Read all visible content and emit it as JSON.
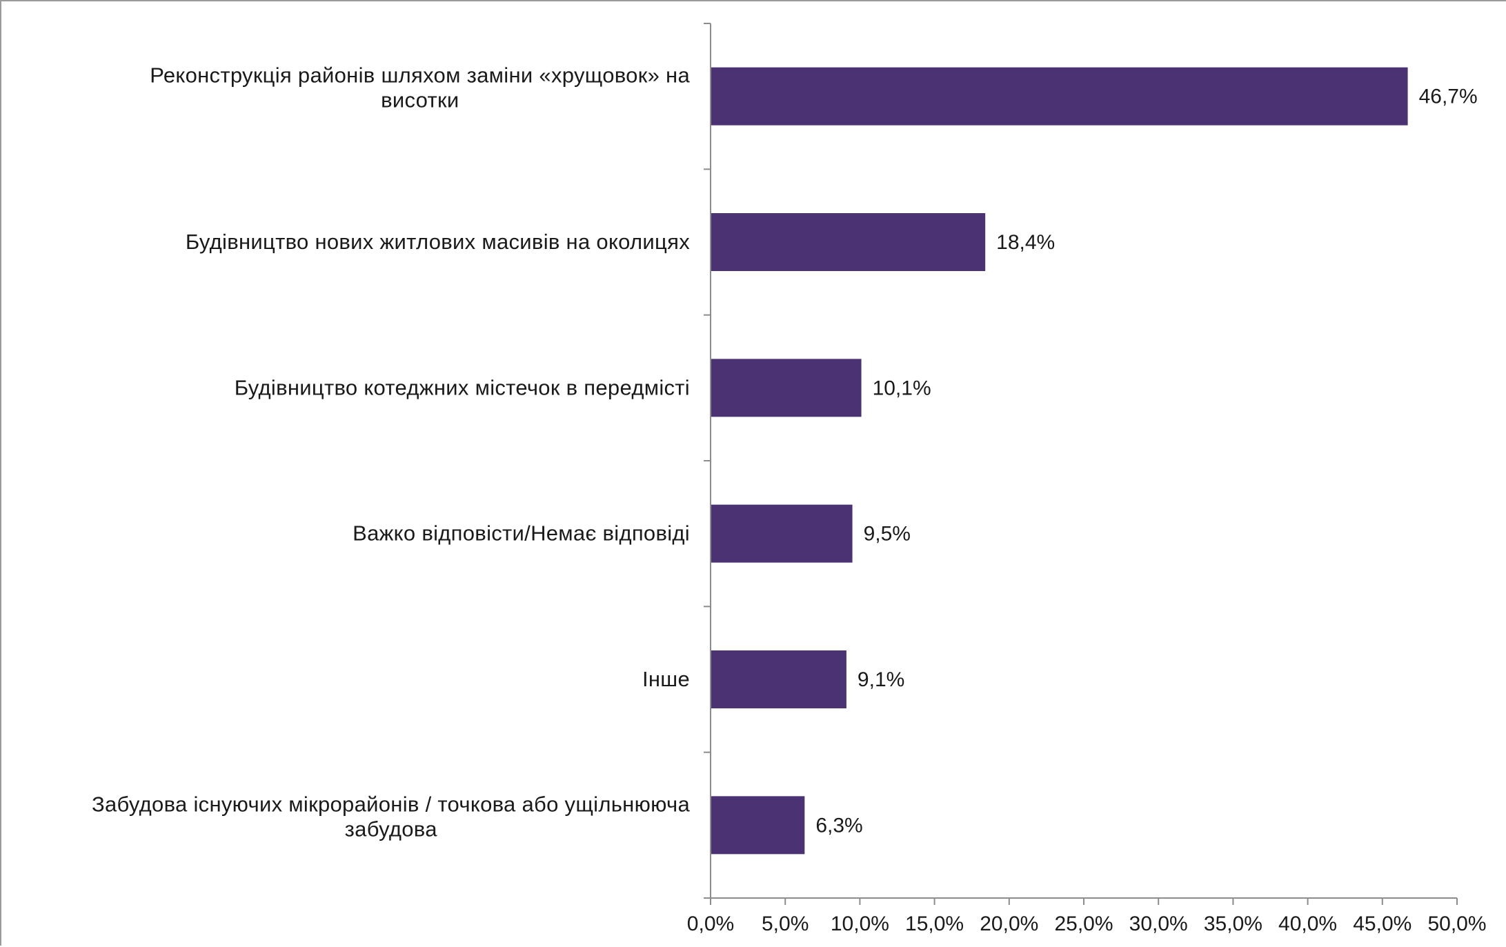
{
  "chart_data": {
    "type": "bar",
    "orientation": "horizontal",
    "title": "",
    "xlabel": "",
    "ylabel": "",
    "xlim": [
      0,
      50
    ],
    "x_tick_step": 5,
    "x_tick_labels": [
      "0,0%",
      "5,0%",
      "10,0%",
      "15,0%",
      "20,0%",
      "25,0%",
      "30,0%",
      "35,0%",
      "40,0%",
      "45,0%",
      "50,0%"
    ],
    "categories": [
      [
        "Реконструкція районів шляхом заміни «хрущовок» на",
        "висотки"
      ],
      [
        "Будівництво нових житлових масивів на околицях"
      ],
      [
        "Будівництво котеджних містечок в передмісті"
      ],
      [
        "Важко відповісти/Немає відповіді"
      ],
      [
        "Інше"
      ],
      [
        "Забудова існуючих мікрорайонів / точкова або ущільнююча",
        "забудова"
      ]
    ],
    "values": [
      46.7,
      18.4,
      10.1,
      9.5,
      9.1,
      6.3
    ],
    "value_labels": [
      "46,7%",
      "18,4%",
      "10,1%",
      "9,5%",
      "9,1%",
      "6,3%"
    ],
    "grid": false,
    "legend": "none",
    "bar_color": "#4b3373"
  }
}
